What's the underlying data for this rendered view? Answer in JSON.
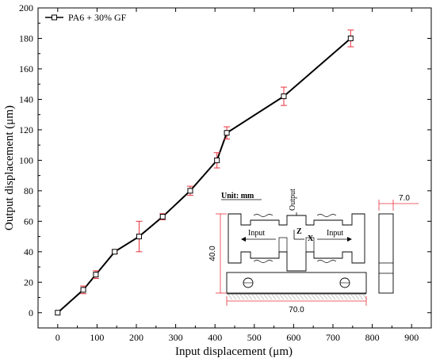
{
  "chart_data": {
    "type": "line",
    "xlabel": "Input displacement (μm)",
    "ylabel": "Output displacement (μm)",
    "xlim": [
      -50,
      950
    ],
    "ylim": [
      -10,
      200
    ],
    "xticks": [
      0,
      100,
      200,
      300,
      400,
      500,
      600,
      700,
      800,
      900
    ],
    "yticks": [
      0,
      20,
      40,
      60,
      80,
      100,
      120,
      140,
      160,
      180,
      200
    ],
    "grid": false,
    "legend_position": "top-left",
    "series": [
      {
        "name": "PA6 + 30% GF",
        "color": "#000000",
        "marker": "open-square",
        "error_bar_color": "#e8323c",
        "x": [
          0,
          65,
          97,
          145,
          207,
          267,
          337,
          405,
          430,
          575,
          745
        ],
        "y": [
          0,
          15,
          25,
          40,
          50,
          63,
          80,
          100,
          118,
          142,
          180
        ],
        "error": [
          0,
          2.5,
          2.5,
          1,
          10,
          2,
          3,
          5,
          4,
          6,
          5.5
        ]
      }
    ]
  },
  "inset": {
    "unit_label": "Unit: mm",
    "output_label": "Output",
    "input_left": "Input",
    "input_right": "Input",
    "axis_z": "Z",
    "axis_x": "X",
    "dim_height": "40.0",
    "dim_width": "70.0",
    "dim_thickness": "7.0",
    "dim_color": "#e8323c"
  }
}
